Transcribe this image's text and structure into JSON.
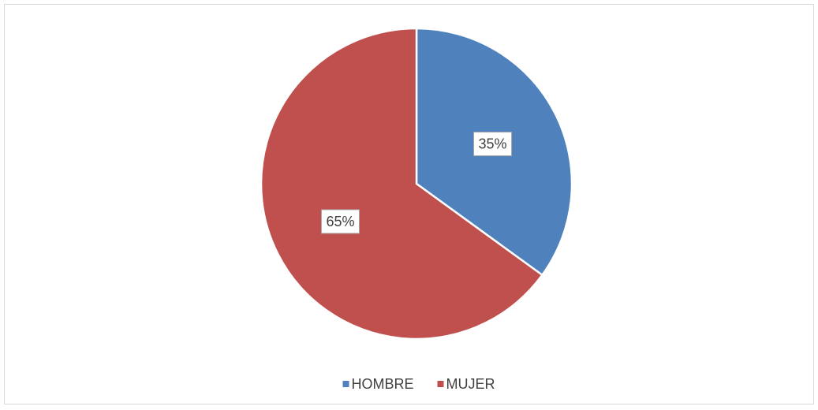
{
  "chart_data": {
    "type": "pie",
    "categories": [
      "HOMBRE",
      "MUJER"
    ],
    "values": [
      35,
      65
    ],
    "value_labels": [
      "35%",
      "65%"
    ],
    "colors": [
      "#4f81bd",
      "#c0504d"
    ],
    "legend": "bottom"
  }
}
